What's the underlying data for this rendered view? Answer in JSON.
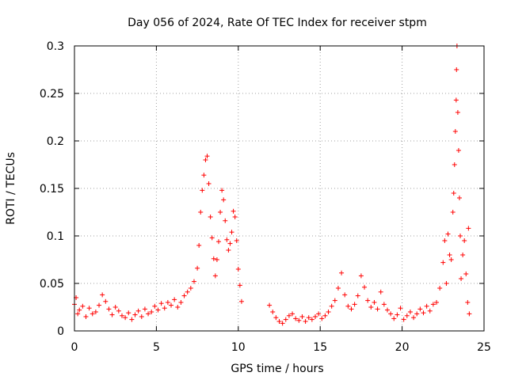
{
  "chart_data": {
    "type": "scatter",
    "title": "Day 056 of 2024, Rate Of TEC Index for receiver stpm",
    "xlabel": "GPS time / hours",
    "ylabel": "ROTI / TECUs",
    "xlim": [
      0,
      25
    ],
    "ylim": [
      0,
      0.3
    ],
    "xticks": [
      0,
      5,
      10,
      15,
      20,
      25
    ],
    "yticks": [
      0,
      0.05,
      0.1,
      0.15,
      0.2,
      0.25,
      0.3
    ],
    "xtick_labels": [
      "0",
      "5",
      "10",
      "15",
      "20",
      "25"
    ],
    "ytick_labels": [
      "0",
      "0.05",
      "0.1",
      "0.15",
      "0.2",
      "0.25",
      "0.3"
    ],
    "grid": true,
    "marker": "+",
    "color": "#ff0000",
    "series": [
      {
        "name": "ROTI",
        "points": [
          [
            0.0,
            0.028
          ],
          [
            0.1,
            0.035
          ],
          [
            0.2,
            0.018
          ],
          [
            0.3,
            0.022
          ],
          [
            0.5,
            0.026
          ],
          [
            0.7,
            0.015
          ],
          [
            0.9,
            0.024
          ],
          [
            1.1,
            0.018
          ],
          [
            1.3,
            0.02
          ],
          [
            1.5,
            0.027
          ],
          [
            1.7,
            0.038
          ],
          [
            1.9,
            0.031
          ],
          [
            2.1,
            0.023
          ],
          [
            2.3,
            0.017
          ],
          [
            2.5,
            0.025
          ],
          [
            2.7,
            0.021
          ],
          [
            2.9,
            0.016
          ],
          [
            3.1,
            0.014
          ],
          [
            3.3,
            0.019
          ],
          [
            3.5,
            0.012
          ],
          [
            3.7,
            0.017
          ],
          [
            3.9,
            0.021
          ],
          [
            4.1,
            0.015
          ],
          [
            4.3,
            0.023
          ],
          [
            4.5,
            0.018
          ],
          [
            4.7,
            0.02
          ],
          [
            4.9,
            0.026
          ],
          [
            5.1,
            0.022
          ],
          [
            5.3,
            0.029
          ],
          [
            5.5,
            0.024
          ],
          [
            5.7,
            0.03
          ],
          [
            5.9,
            0.027
          ],
          [
            6.1,
            0.033
          ],
          [
            6.3,
            0.025
          ],
          [
            6.5,
            0.03
          ],
          [
            6.7,
            0.037
          ],
          [
            6.9,
            0.041
          ],
          [
            7.1,
            0.045
          ],
          [
            7.3,
            0.052
          ],
          [
            7.5,
            0.066
          ],
          [
            7.6,
            0.09
          ],
          [
            7.7,
            0.125
          ],
          [
            7.8,
            0.148
          ],
          [
            7.9,
            0.164
          ],
          [
            8.0,
            0.18
          ],
          [
            8.1,
            0.184
          ],
          [
            8.2,
            0.155
          ],
          [
            8.3,
            0.12
          ],
          [
            8.4,
            0.098
          ],
          [
            8.5,
            0.076
          ],
          [
            8.6,
            0.058
          ],
          [
            8.7,
            0.075
          ],
          [
            8.8,
            0.094
          ],
          [
            8.9,
            0.125
          ],
          [
            9.0,
            0.148
          ],
          [
            9.1,
            0.138
          ],
          [
            9.2,
            0.116
          ],
          [
            9.3,
            0.096
          ],
          [
            9.4,
            0.085
          ],
          [
            9.5,
            0.092
          ],
          [
            9.6,
            0.104
          ],
          [
            9.7,
            0.126
          ],
          [
            9.8,
            0.12
          ],
          [
            9.9,
            0.095
          ],
          [
            10.0,
            0.065
          ],
          [
            10.1,
            0.048
          ],
          [
            10.2,
            0.031
          ],
          [
            11.9,
            0.027
          ],
          [
            12.1,
            0.02
          ],
          [
            12.3,
            0.014
          ],
          [
            12.5,
            0.01
          ],
          [
            12.7,
            0.008
          ],
          [
            12.9,
            0.012
          ],
          [
            13.1,
            0.016
          ],
          [
            13.3,
            0.018
          ],
          [
            13.5,
            0.013
          ],
          [
            13.7,
            0.011
          ],
          [
            13.9,
            0.015
          ],
          [
            14.1,
            0.01
          ],
          [
            14.3,
            0.014
          ],
          [
            14.5,
            0.012
          ],
          [
            14.7,
            0.015
          ],
          [
            14.9,
            0.018
          ],
          [
            15.1,
            0.013
          ],
          [
            15.3,
            0.016
          ],
          [
            15.5,
            0.02
          ],
          [
            15.7,
            0.026
          ],
          [
            15.9,
            0.032
          ],
          [
            16.1,
            0.045
          ],
          [
            16.3,
            0.061
          ],
          [
            16.5,
            0.038
          ],
          [
            16.7,
            0.026
          ],
          [
            16.9,
            0.023
          ],
          [
            17.1,
            0.028
          ],
          [
            17.3,
            0.037
          ],
          [
            17.5,
            0.058
          ],
          [
            17.7,
            0.046
          ],
          [
            17.9,
            0.032
          ],
          [
            18.1,
            0.025
          ],
          [
            18.3,
            0.03
          ],
          [
            18.5,
            0.023
          ],
          [
            18.7,
            0.041
          ],
          [
            18.9,
            0.028
          ],
          [
            19.1,
            0.022
          ],
          [
            19.3,
            0.018
          ],
          [
            19.5,
            0.013
          ],
          [
            19.7,
            0.017
          ],
          [
            19.9,
            0.024
          ],
          [
            20.1,
            0.012
          ],
          [
            20.3,
            0.016
          ],
          [
            20.5,
            0.02
          ],
          [
            20.7,
            0.014
          ],
          [
            20.9,
            0.018
          ],
          [
            21.1,
            0.023
          ],
          [
            21.3,
            0.019
          ],
          [
            21.5,
            0.026
          ],
          [
            21.7,
            0.021
          ],
          [
            21.9,
            0.028
          ],
          [
            22.1,
            0.03
          ],
          [
            22.3,
            0.045
          ],
          [
            22.5,
            0.072
          ],
          [
            22.6,
            0.095
          ],
          [
            22.7,
            0.05
          ],
          [
            22.8,
            0.102
          ],
          [
            22.9,
            0.08
          ],
          [
            23.0,
            0.075
          ],
          [
            23.1,
            0.125
          ],
          [
            23.15,
            0.145
          ],
          [
            23.2,
            0.175
          ],
          [
            23.25,
            0.21
          ],
          [
            23.3,
            0.243
          ],
          [
            23.32,
            0.275
          ],
          [
            23.35,
            0.3
          ],
          [
            23.4,
            0.23
          ],
          [
            23.45,
            0.19
          ],
          [
            23.5,
            0.14
          ],
          [
            23.55,
            0.1
          ],
          [
            23.6,
            0.055
          ],
          [
            23.7,
            0.08
          ],
          [
            23.8,
            0.095
          ],
          [
            23.9,
            0.06
          ],
          [
            24.0,
            0.03
          ],
          [
            24.05,
            0.108
          ],
          [
            24.1,
            0.018
          ]
        ]
      }
    ]
  }
}
